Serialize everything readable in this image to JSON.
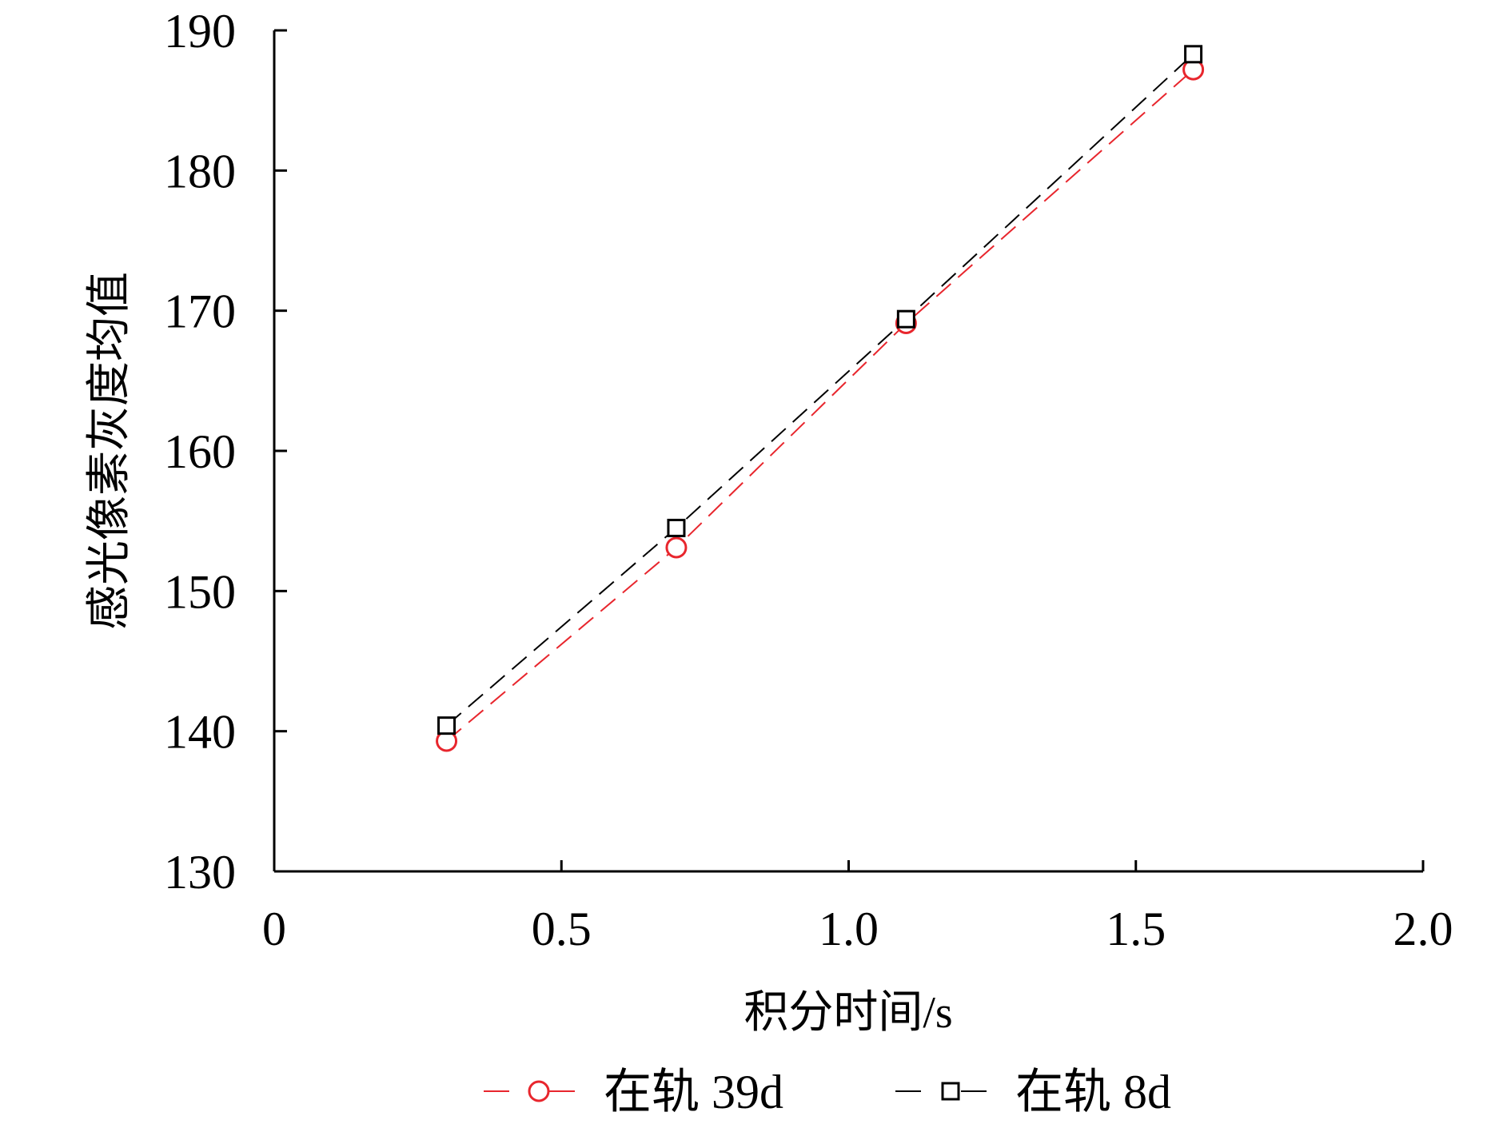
{
  "chart_data": {
    "type": "line",
    "xlabel": "积分时间/s",
    "ylabel": "感光像素灰度均值",
    "xlim": [
      0,
      2.0
    ],
    "ylim": [
      130,
      190
    ],
    "xticks": [
      0,
      0.5,
      1.0,
      1.5,
      2.0
    ],
    "xtick_labels": [
      "0",
      "0.5",
      "1.0",
      "1.5",
      "2.0"
    ],
    "yticks": [
      130,
      140,
      150,
      160,
      170,
      180,
      190
    ],
    "ytick_labels": [
      "130",
      "140",
      "150",
      "160",
      "170",
      "180",
      "190"
    ],
    "grid": false,
    "legend_position": "bottom",
    "series": [
      {
        "name": "在轨 39d",
        "color": "#e8262d",
        "marker": "circle",
        "line_style": "dashed",
        "x": [
          0.3,
          0.7,
          1.1,
          1.6
        ],
        "y": [
          139.3,
          153.1,
          169.1,
          187.2
        ]
      },
      {
        "name": "在轨 8d",
        "color": "#000000",
        "marker": "square",
        "line_style": "dashed",
        "x": [
          0.3,
          0.7,
          1.1,
          1.6
        ],
        "y": [
          140.4,
          154.5,
          169.4,
          188.3
        ]
      }
    ]
  }
}
